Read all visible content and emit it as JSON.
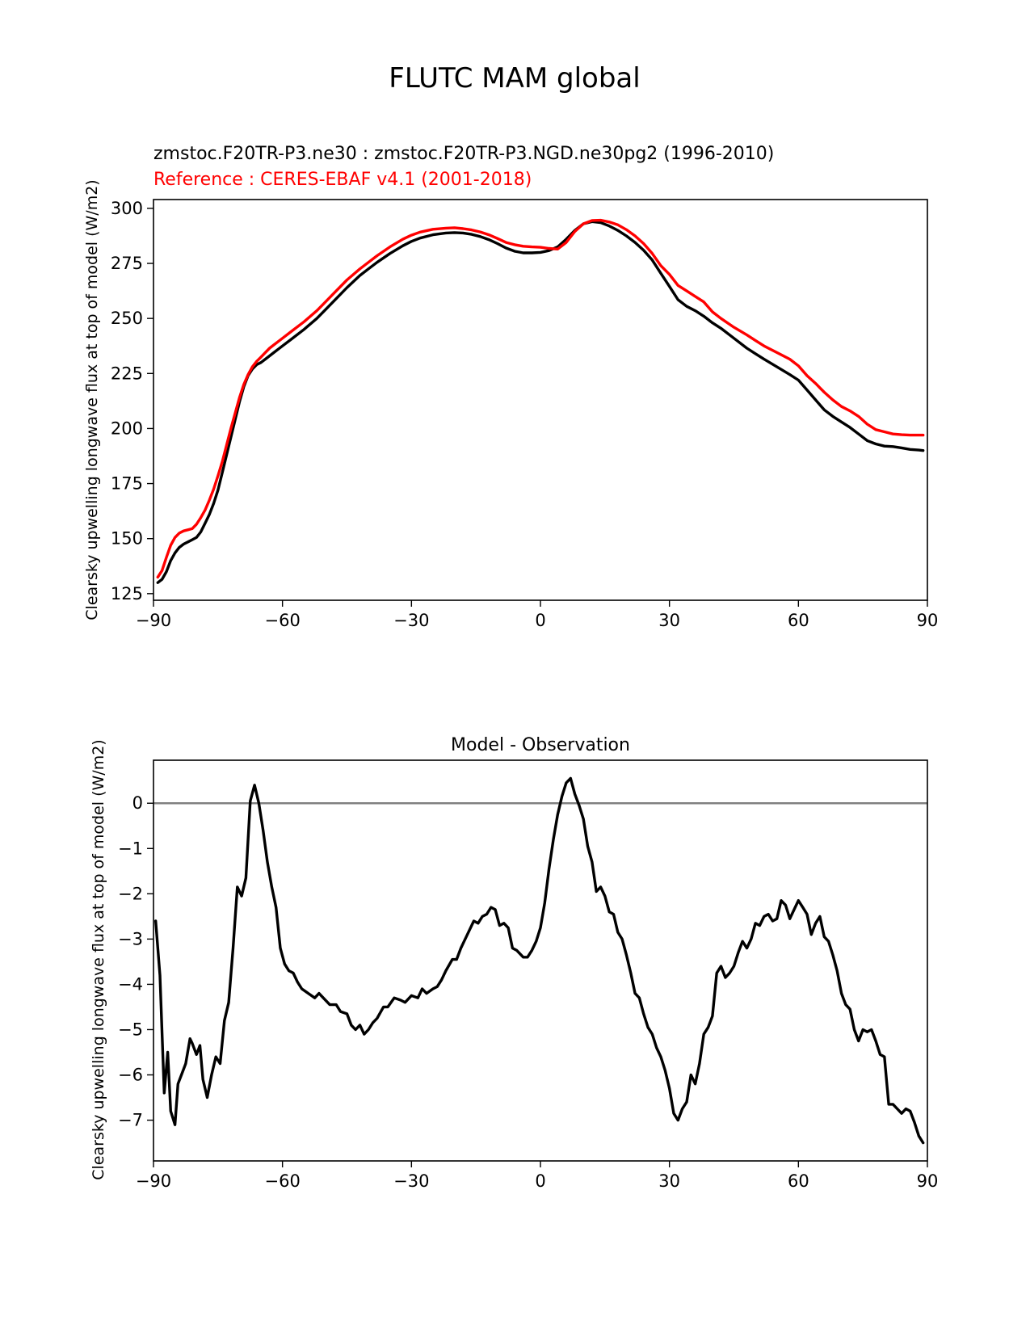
{
  "figure": {
    "title": "FLUTC MAM global"
  },
  "colors": {
    "model": "#000000",
    "reference": "#ff0000",
    "zero_line": "#808080",
    "axes": "#000000"
  },
  "chart_data": [
    {
      "type": "line",
      "test_label": "zmstoc.F20TR-P3.ne30 : zmstoc.F20TR-P3.NGD.ne30pg2 (1996-2010)",
      "reference_label": "Reference : CERES-EBAF v4.1 (2001-2018)",
      "ylabel": "Clearsky upwelling longwave flux at top of model (W/m2)",
      "xlabel": "",
      "xlim": [
        -90,
        90
      ],
      "ylim": [
        122,
        304
      ],
      "xticks": [
        -90,
        -60,
        -30,
        0,
        30,
        60,
        90
      ],
      "xtick_labels": [
        "−90",
        "−60",
        "−30",
        "0",
        "30",
        "60",
        "90"
      ],
      "yticks": [
        125,
        150,
        175,
        200,
        225,
        250,
        275,
        300
      ],
      "ytick_labels": [
        "125",
        "150",
        "175",
        "200",
        "225",
        "250",
        "275",
        "300"
      ],
      "series": [
        {
          "role": "test",
          "color": "#000000",
          "x": [
            -89,
            -88,
            -87,
            -86,
            -85,
            -84,
            -83,
            -82,
            -81,
            -80,
            -79,
            -78,
            -77,
            -76,
            -75,
            -74,
            -73,
            -72,
            -71,
            -70,
            -69,
            -68,
            -67,
            -66,
            -65,
            -64,
            -63,
            -62,
            -61,
            -60,
            -58,
            -55,
            -52,
            -50,
            -48,
            -45,
            -42,
            -40,
            -38,
            -35,
            -32,
            -30,
            -28,
            -25,
            -22,
            -20,
            -18,
            -16,
            -14,
            -12,
            -10,
            -8,
            -6,
            -4,
            -2,
            0,
            2,
            4,
            6,
            8,
            10,
            12,
            14,
            16,
            18,
            20,
            22,
            24,
            26,
            28,
            30,
            32,
            34,
            36,
            38,
            40,
            42,
            45,
            48,
            50,
            52,
            55,
            58,
            60,
            62,
            64,
            66,
            68,
            70,
            72,
            74,
            76,
            78,
            80,
            82,
            84,
            86,
            88,
            89
          ],
          "y": [
            130,
            131.5,
            135,
            140,
            143.5,
            146,
            147.5,
            148.5,
            149.5,
            150.5,
            153,
            157,
            161,
            166,
            172,
            180,
            188,
            196,
            204,
            212,
            219,
            224,
            227,
            229,
            230,
            231.5,
            233,
            234.5,
            236,
            237.5,
            240.5,
            245,
            250,
            254,
            258,
            264,
            269.5,
            272.5,
            275.5,
            279.5,
            283,
            285,
            286.5,
            288,
            288.8,
            289,
            288.8,
            288.2,
            287.2,
            285.8,
            284,
            282,
            280.5,
            279.8,
            279.8,
            280,
            280.8,
            282.5,
            286,
            290,
            293,
            294,
            293.5,
            292,
            290,
            287.5,
            284.5,
            281,
            276.5,
            270.5,
            264.5,
            258.5,
            255.5,
            253.5,
            251,
            248,
            245.5,
            241,
            236.5,
            234,
            231.5,
            228,
            224.5,
            222,
            217.5,
            213,
            208.5,
            205.5,
            203,
            200.5,
            197.5,
            194.5,
            193,
            192,
            191.8,
            191.2,
            190.5,
            190.2,
            190
          ]
        },
        {
          "role": "reference",
          "color": "#ff0000",
          "x": [
            -89,
            -88,
            -87,
            -86,
            -85,
            -84,
            -83,
            -82,
            -81,
            -80,
            -79,
            -78,
            -77,
            -76,
            -75,
            -74,
            -73,
            -72,
            -71,
            -70,
            -69,
            -68,
            -67,
            -66,
            -65,
            -64,
            -63,
            -62,
            -61,
            -60,
            -58,
            -55,
            -52,
            -50,
            -48,
            -45,
            -42,
            -40,
            -38,
            -35,
            -32,
            -30,
            -28,
            -25,
            -22,
            -20,
            -18,
            -16,
            -14,
            -12,
            -10,
            -8,
            -6,
            -4,
            -2,
            0,
            2,
            4,
            6,
            8,
            10,
            12,
            14,
            16,
            18,
            20,
            22,
            24,
            26,
            28,
            30,
            32,
            34,
            36,
            38,
            40,
            42,
            45,
            48,
            50,
            52,
            55,
            58,
            60,
            62,
            64,
            66,
            68,
            70,
            72,
            74,
            76,
            78,
            80,
            82,
            84,
            86,
            88,
            89
          ],
          "y": [
            132.5,
            135.5,
            141.5,
            147,
            150.5,
            152.5,
            153.5,
            154,
            154.5,
            156.5,
            159.5,
            163,
            167.5,
            172.5,
            178.5,
            185,
            192.5,
            200,
            207,
            214,
            220,
            224.5,
            228,
            230.5,
            232.5,
            234.5,
            236.5,
            238,
            239.5,
            241,
            244,
            248.5,
            253.5,
            257.5,
            261.5,
            267.5,
            272.5,
            275.5,
            278.5,
            282.5,
            286,
            287.8,
            289.2,
            290.5,
            291,
            291.2,
            290.8,
            290.2,
            289.3,
            288,
            286.3,
            284.5,
            283.5,
            282.8,
            282.5,
            282.3,
            281.8,
            281.5,
            284.5,
            289.5,
            293,
            294.5,
            294.6,
            293.8,
            292.5,
            290.3,
            287.5,
            284,
            279.5,
            274,
            270,
            265,
            262.5,
            260,
            257.5,
            253,
            250,
            246,
            242.5,
            240,
            237.5,
            234.5,
            231.5,
            228.5,
            224,
            220.5,
            216.5,
            213,
            210,
            208,
            205.5,
            202,
            199.5,
            198.5,
            197.5,
            197.2,
            197,
            197,
            197
          ]
        }
      ]
    },
    {
      "type": "line",
      "title": "Model - Observation",
      "ylabel": "Clearsky upwelling longwave flux at top of model (W/m2)",
      "xlabel": "",
      "xlim": [
        -90,
        90
      ],
      "ylim": [
        -7.9,
        0.95
      ],
      "xticks": [
        -90,
        -60,
        -30,
        0,
        30,
        60,
        90
      ],
      "xtick_labels": [
        "−90",
        "−60",
        "−30",
        "0",
        "30",
        "60",
        "90"
      ],
      "yticks": [
        0,
        -1,
        -2,
        -3,
        -4,
        -5,
        -6,
        -7
      ],
      "ytick_labels": [
        "0",
        "−1",
        "−2",
        "−3",
        "−4",
        "−5",
        "−6",
        "−7"
      ],
      "zero_line": true,
      "series": [
        {
          "role": "difference",
          "color": "#000000",
          "x": [
            -89.5,
            -88.5,
            -87.5,
            -86.7,
            -86,
            -85,
            -84.3,
            -83.5,
            -82.5,
            -81.5,
            -81,
            -80,
            -79.2,
            -78.5,
            -77.5,
            -76.5,
            -75.5,
            -74.5,
            -73.5,
            -72.5,
            -71.5,
            -70.5,
            -69.5,
            -68.5,
            -67.5,
            -66.5,
            -65.5,
            -64.5,
            -63.5,
            -62.5,
            -61.5,
            -60.5,
            -59.5,
            -58.5,
            -57.5,
            -56.5,
            -55.5,
            -54,
            -52.5,
            -51.5,
            -50.5,
            -49,
            -47.5,
            -46.5,
            -45,
            -44,
            -43,
            -42,
            -41,
            -40,
            -39,
            -38,
            -36.5,
            -35.5,
            -34,
            -32.5,
            -31.5,
            -30,
            -28.5,
            -27.5,
            -26.5,
            -25,
            -24,
            -23,
            -22,
            -20.5,
            -19.5,
            -18.5,
            -17,
            -15.5,
            -14.5,
            -13.5,
            -12.5,
            -11.5,
            -10.5,
            -9.5,
            -8.5,
            -7.5,
            -6.5,
            -5.5,
            -4,
            -3,
            -2,
            -1,
            0,
            1,
            2,
            3,
            4,
            5,
            6,
            7,
            8,
            9,
            10,
            11,
            12,
            13,
            14,
            15,
            16,
            17,
            18,
            19,
            20,
            21,
            22,
            23,
            24,
            25,
            26,
            27,
            28,
            29,
            30,
            31,
            32,
            33,
            34,
            35,
            36,
            37,
            38,
            39,
            40,
            41,
            42,
            43,
            44,
            45,
            46,
            47,
            48,
            49,
            50,
            51,
            52,
            53,
            54,
            55,
            56,
            57,
            58,
            59,
            60,
            61,
            62,
            63,
            64,
            65,
            66,
            67,
            68,
            69,
            70,
            71,
            72,
            73,
            74,
            75,
            76,
            77,
            78,
            79,
            80,
            81,
            82,
            83,
            84,
            85,
            86,
            87,
            88,
            89
          ],
          "y": [
            -2.6,
            -3.8,
            -6.4,
            -5.5,
            -6.8,
            -7.1,
            -6.2,
            -6.0,
            -5.75,
            -5.2,
            -5.3,
            -5.55,
            -5.35,
            -6.1,
            -6.5,
            -6.0,
            -5.6,
            -5.75,
            -4.8,
            -4.4,
            -3.2,
            -1.85,
            -2.05,
            -1.65,
            0.05,
            0.4,
            0.0,
            -0.6,
            -1.3,
            -1.85,
            -2.3,
            -3.2,
            -3.55,
            -3.7,
            -3.75,
            -3.95,
            -4.1,
            -4.2,
            -4.3,
            -4.2,
            -4.3,
            -4.45,
            -4.45,
            -4.6,
            -4.65,
            -4.9,
            -5.0,
            -4.9,
            -5.1,
            -5.0,
            -4.85,
            -4.75,
            -4.5,
            -4.5,
            -4.3,
            -4.35,
            -4.4,
            -4.25,
            -4.3,
            -4.1,
            -4.2,
            -4.1,
            -4.05,
            -3.9,
            -3.7,
            -3.45,
            -3.45,
            -3.2,
            -2.9,
            -2.6,
            -2.65,
            -2.5,
            -2.45,
            -2.3,
            -2.35,
            -2.7,
            -2.65,
            -2.75,
            -3.2,
            -3.25,
            -3.4,
            -3.4,
            -3.25,
            -3.05,
            -2.75,
            -2.2,
            -1.45,
            -0.8,
            -0.25,
            0.15,
            0.45,
            0.55,
            0.2,
            -0.05,
            -0.35,
            -0.95,
            -1.3,
            -1.95,
            -1.85,
            -2.05,
            -2.4,
            -2.45,
            -2.85,
            -3.0,
            -3.35,
            -3.75,
            -4.2,
            -4.3,
            -4.65,
            -4.95,
            -5.1,
            -5.4,
            -5.6,
            -5.9,
            -6.3,
            -6.85,
            -7.0,
            -6.75,
            -6.6,
            -6.0,
            -6.2,
            -5.75,
            -5.1,
            -4.95,
            -4.7,
            -3.75,
            -3.6,
            -3.85,
            -3.75,
            -3.6,
            -3.3,
            -3.05,
            -3.2,
            -3.0,
            -2.65,
            -2.7,
            -2.5,
            -2.45,
            -2.6,
            -2.55,
            -2.15,
            -2.25,
            -2.55,
            -2.35,
            -2.15,
            -2.3,
            -2.45,
            -2.9,
            -2.65,
            -2.5,
            -2.95,
            -3.05,
            -3.35,
            -3.7,
            -4.2,
            -4.45,
            -4.55,
            -5.0,
            -5.25,
            -5.0,
            -5.05,
            -5.0,
            -5.25,
            -5.55,
            -5.6,
            -6.65,
            -6.65,
            -6.75,
            -6.85,
            -6.75,
            -6.8,
            -7.05,
            -7.35,
            -7.5
          ]
        }
      ]
    }
  ]
}
